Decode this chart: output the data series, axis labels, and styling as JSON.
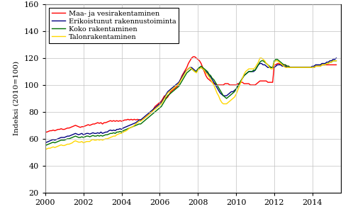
{
  "ylabel": "Indeksi (2010=100)",
  "xlim": [
    2000,
    2015.5
  ],
  "ylim": [
    20,
    160
  ],
  "yticks": [
    20,
    40,
    60,
    80,
    100,
    120,
    140,
    160
  ],
  "xticks": [
    2000,
    2002,
    2004,
    2006,
    2008,
    2010,
    2012,
    2014
  ],
  "colors": {
    "koko": "#007000",
    "talonrak": "#FFD700",
    "maa": "#FF0000",
    "erikois": "#000080"
  },
  "legend": [
    "Koko rakentaminen",
    "Talonrakentaminen",
    "Maa- ja vesirakentaminen",
    "Erikoistunut rakennustoiminta"
  ],
  "series": {
    "t": [
      2000.0,
      2000.083,
      2000.167,
      2000.25,
      2000.333,
      2000.417,
      2000.5,
      2000.583,
      2000.667,
      2000.75,
      2000.833,
      2000.917,
      2001.0,
      2001.083,
      2001.167,
      2001.25,
      2001.333,
      2001.417,
      2001.5,
      2001.583,
      2001.667,
      2001.75,
      2001.833,
      2001.917,
      2002.0,
      2002.083,
      2002.167,
      2002.25,
      2002.333,
      2002.417,
      2002.5,
      2002.583,
      2002.667,
      2002.75,
      2002.833,
      2002.917,
      2003.0,
      2003.083,
      2003.167,
      2003.25,
      2003.333,
      2003.417,
      2003.5,
      2003.583,
      2003.667,
      2003.75,
      2003.833,
      2003.917,
      2004.0,
      2004.083,
      2004.167,
      2004.25,
      2004.333,
      2004.417,
      2004.5,
      2004.583,
      2004.667,
      2004.75,
      2004.833,
      2004.917,
      2005.0,
      2005.083,
      2005.167,
      2005.25,
      2005.333,
      2005.417,
      2005.5,
      2005.583,
      2005.667,
      2005.75,
      2005.833,
      2005.917,
      2006.0,
      2006.083,
      2006.167,
      2006.25,
      2006.333,
      2006.417,
      2006.5,
      2006.583,
      2006.667,
      2006.75,
      2006.833,
      2006.917,
      2007.0,
      2007.083,
      2007.167,
      2007.25,
      2007.333,
      2007.417,
      2007.5,
      2007.583,
      2007.667,
      2007.75,
      2007.833,
      2007.917,
      2008.0,
      2008.083,
      2008.167,
      2008.25,
      2008.333,
      2008.417,
      2008.5,
      2008.583,
      2008.667,
      2008.75,
      2008.833,
      2008.917,
      2009.0,
      2009.083,
      2009.167,
      2009.25,
      2009.333,
      2009.417,
      2009.5,
      2009.583,
      2009.667,
      2009.75,
      2009.833,
      2009.917,
      2010.0,
      2010.083,
      2010.167,
      2010.25,
      2010.333,
      2010.417,
      2010.5,
      2010.583,
      2010.667,
      2010.75,
      2010.833,
      2010.917,
      2011.0,
      2011.083,
      2011.167,
      2011.25,
      2011.333,
      2011.417,
      2011.5,
      2011.583,
      2011.667,
      2011.75,
      2011.833,
      2011.917,
      2012.0,
      2012.083,
      2012.167,
      2012.25,
      2012.333,
      2012.417,
      2012.5,
      2012.583,
      2012.667,
      2012.75,
      2012.833,
      2012.917,
      2013.0,
      2013.083,
      2013.167,
      2013.25,
      2013.333,
      2013.417,
      2013.5,
      2013.583,
      2013.667,
      2013.75,
      2013.833,
      2013.917,
      2014.0,
      2014.083,
      2014.167,
      2014.25,
      2014.333,
      2014.417,
      2014.5,
      2014.583,
      2014.667,
      2014.75,
      2014.833,
      2014.917,
      2015.0,
      2015.083,
      2015.167,
      2015.25
    ],
    "koko": [
      55,
      55.5,
      56,
      56.5,
      57,
      57.5,
      57,
      57.5,
      58,
      58.5,
      59,
      59,
      59,
      59.5,
      60,
      60,
      60.5,
      61,
      61.5,
      62,
      61.5,
      61,
      61,
      61.5,
      61,
      61.5,
      62,
      62,
      61.5,
      62,
      62.5,
      62,
      62,
      62.5,
      62,
      62.5,
      62,
      62.5,
      63,
      63,
      63.5,
      64,
      64,
      64.5,
      64,
      65,
      65,
      65.5,
      65,
      66,
      66.5,
      67,
      67.5,
      68,
      68.5,
      69,
      69.5,
      70,
      70.5,
      71,
      71,
      72,
      73,
      74,
      75,
      76,
      77,
      78,
      79,
      80,
      81,
      82,
      83,
      84,
      86,
      88,
      90,
      92,
      93,
      94,
      95,
      96,
      97,
      98,
      99,
      101,
      103,
      105,
      107,
      109,
      110,
      111,
      112,
      111,
      110,
      110,
      112,
      113,
      114,
      113,
      112,
      111,
      110,
      108,
      107,
      105,
      104,
      102,
      100,
      98,
      96,
      94,
      92,
      91,
      90,
      91,
      92,
      93,
      94,
      95,
      97,
      99,
      101,
      103,
      105,
      107,
      108,
      109,
      110,
      110,
      110,
      111,
      111,
      113,
      115,
      117,
      118,
      118,
      117,
      116,
      115,
      114,
      113,
      113,
      118,
      119,
      119,
      118,
      117,
      116,
      115,
      115,
      114,
      114,
      113,
      113,
      113,
      113,
      113,
      113,
      113,
      113,
      113,
      113,
      113,
      113,
      113,
      113,
      113,
      113,
      114,
      114,
      114,
      114,
      115,
      115,
      115,
      116,
      116,
      117,
      117,
      118,
      118,
      118
    ],
    "talonrak": [
      52,
      52.5,
      53,
      53,
      53.5,
      54,
      53.5,
      54,
      54.5,
      55,
      55.5,
      55,
      55,
      55.5,
      56,
      56,
      56.5,
      57,
      58,
      58.5,
      58,
      57.5,
      57.5,
      58,
      57,
      57.5,
      58,
      58,
      58,
      59,
      59.5,
      59,
      59,
      59.5,
      59,
      59.5,
      59,
      59.5,
      60,
      60,
      60.5,
      61,
      61.5,
      62,
      62,
      63,
      63.5,
      64,
      64,
      65,
      65.5,
      66,
      67,
      68,
      68.5,
      69,
      70,
      71,
      72,
      73,
      73,
      74,
      75,
      76,
      77,
      78,
      79,
      80,
      81,
      82,
      83,
      84,
      85,
      86,
      88,
      90,
      92,
      94,
      95,
      96,
      97,
      98,
      99,
      100,
      101,
      103,
      105,
      107,
      109,
      111,
      112,
      113,
      112,
      111,
      110,
      109,
      111,
      112,
      113,
      112,
      111,
      109,
      108,
      106,
      104,
      102,
      100,
      97,
      94,
      92,
      89,
      87,
      86,
      86,
      86,
      87,
      88,
      89,
      90,
      91,
      93,
      96,
      99,
      102,
      105,
      108,
      110,
      111,
      112,
      112,
      112,
      112,
      113,
      115,
      117,
      120,
      120,
      119,
      118,
      116,
      115,
      113,
      112,
      112,
      117,
      118,
      118,
      117,
      116,
      115,
      114,
      113,
      113,
      113,
      113,
      113,
      113,
      113,
      113,
      113,
      113,
      113,
      113,
      113,
      113,
      113,
      113,
      113,
      113,
      113,
      114,
      114,
      114,
      114,
      115,
      115,
      115,
      116,
      116,
      117,
      117,
      118,
      118,
      118
    ],
    "maa": [
      65,
      65,
      65.5,
      66,
      66,
      66.5,
      66,
      66.5,
      67,
      67,
      67.5,
      67,
      67,
      67.5,
      68,
      68,
      68.5,
      69,
      69.5,
      70,
      69.5,
      69,
      68.5,
      69,
      69,
      69.5,
      70,
      70.5,
      70,
      70.5,
      71,
      71,
      71.5,
      72,
      71.5,
      72,
      71,
      72,
      72,
      72.5,
      73,
      73.5,
      73,
      73.5,
      73,
      73.5,
      73,
      73.5,
      73,
      73.5,
      74,
      74,
      74.5,
      74,
      74.5,
      74,
      74.5,
      74,
      74.5,
      74,
      74,
      74.5,
      75,
      76,
      77,
      78,
      79,
      80,
      82,
      84,
      85,
      86,
      87,
      88,
      90,
      92,
      90,
      91,
      93,
      95,
      96,
      97,
      98,
      99,
      101,
      104,
      107,
      109,
      111,
      113,
      116,
      118,
      120,
      121,
      121,
      120,
      119,
      118,
      116,
      113,
      110,
      107,
      105,
      104,
      103,
      102,
      101,
      101,
      100,
      100,
      100,
      100,
      100,
      101,
      101,
      101,
      100,
      100,
      100,
      100,
      100,
      101,
      101,
      102,
      102,
      101,
      101,
      101,
      101,
      100,
      100,
      100,
      100,
      101,
      102,
      103,
      103,
      103,
      103,
      103,
      102,
      102,
      102,
      102,
      115,
      115,
      116,
      116,
      115,
      115,
      115,
      115,
      114,
      114,
      113,
      113,
      113,
      113,
      113,
      113,
      113,
      113,
      113,
      113,
      113,
      113,
      113,
      113,
      113,
      113,
      114,
      114,
      114,
      114,
      115,
      115,
      115,
      115,
      115,
      115,
      115,
      115,
      115,
      115
    ],
    "erikois": [
      57,
      57.5,
      58,
      58.5,
      59,
      59.5,
      59,
      59.5,
      60,
      60.5,
      61,
      61,
      61,
      61.5,
      62,
      62,
      62.5,
      63,
      63.5,
      64,
      63.5,
      63,
      63.5,
      64,
      63,
      63.5,
      64,
      64,
      63.5,
      64,
      64.5,
      64,
      64,
      64.5,
      64,
      65,
      64,
      64.5,
      65,
      65,
      66,
      66.5,
      66,
      66.5,
      66,
      67,
      67,
      67.5,
      67,
      68,
      68.5,
      69,
      69.5,
      70,
      70.5,
      71,
      71.5,
      72,
      73,
      74,
      74,
      75,
      76,
      77,
      78,
      79,
      80,
      81,
      82,
      83,
      84,
      85,
      86,
      87,
      89,
      91,
      93,
      95,
      96,
      97,
      98,
      99,
      100,
      101,
      102,
      104,
      106,
      108,
      110,
      111,
      112,
      113,
      113,
      112,
      111,
      110,
      112,
      113,
      113,
      112,
      111,
      110,
      109,
      107,
      106,
      104,
      102,
      100,
      98,
      96,
      94,
      93,
      92,
      92,
      92,
      93,
      94,
      95,
      95,
      96,
      97,
      99,
      101,
      103,
      105,
      107,
      108,
      109,
      110,
      110,
      110,
      110,
      111,
      113,
      115,
      116,
      116,
      115,
      115,
      114,
      113,
      113,
      113,
      113,
      113,
      114,
      115,
      115,
      115,
      114,
      114,
      114,
      113,
      113,
      113,
      113,
      113,
      113,
      113,
      113,
      113,
      113,
      113,
      113,
      113,
      113,
      113,
      113,
      114,
      114,
      115,
      115,
      115,
      115,
      116,
      116,
      116,
      117,
      117,
      118,
      118,
      119,
      119,
      120
    ]
  }
}
